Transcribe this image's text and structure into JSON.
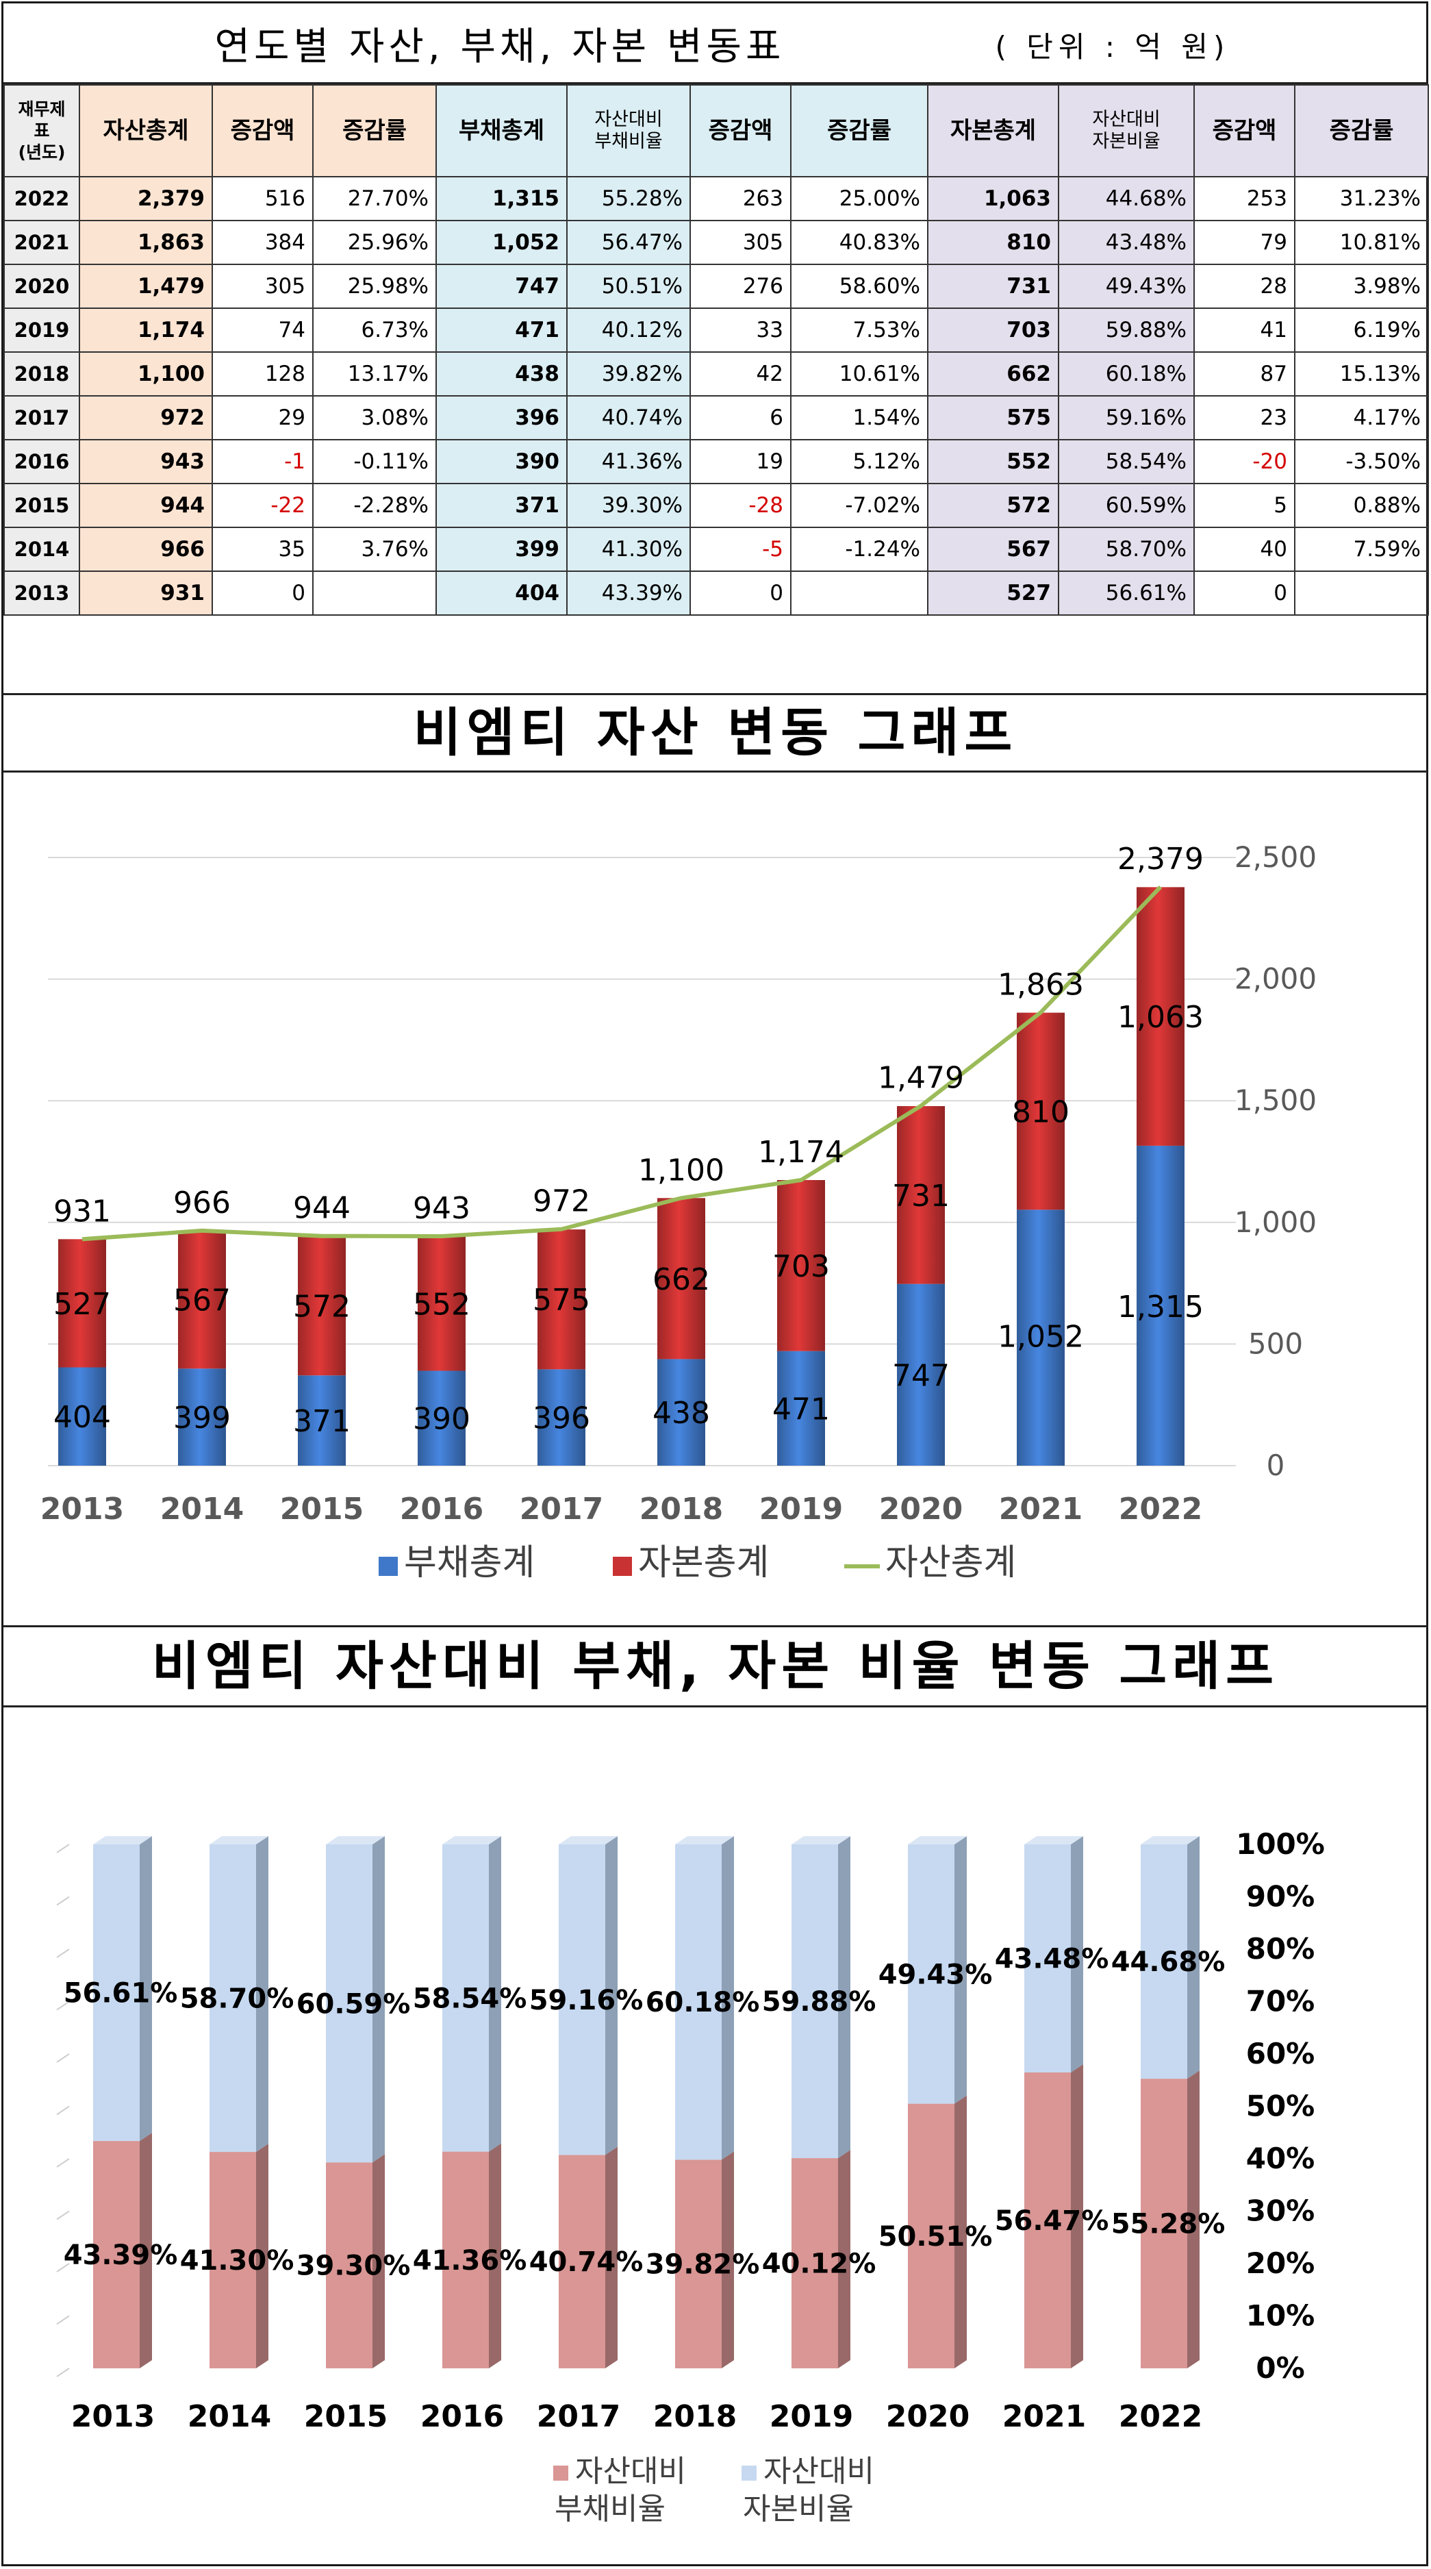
{
  "table": {
    "title": "연도별  자산,  부채,  자본  변동표",
    "unit": "( 단위 : 억 원)",
    "headers": [
      "재무제표\n(년도)",
      "자산총계",
      "증감액",
      "증감률",
      "부채총계",
      "자산대비\n부채비율",
      "증감액",
      "증감률",
      "자본총계",
      "자산대비\n자본비율",
      "증감액",
      "증감률"
    ],
    "rows": [
      [
        "2022",
        "2,379",
        "516",
        "27.70%",
        "1,315",
        "55.28%",
        "263",
        "25.00%",
        "1,063",
        "44.68%",
        "253",
        "31.23%"
      ],
      [
        "2021",
        "1,863",
        "384",
        "25.96%",
        "1,052",
        "56.47%",
        "305",
        "40.83%",
        "810",
        "43.48%",
        "79",
        "10.81%"
      ],
      [
        "2020",
        "1,479",
        "305",
        "25.98%",
        "747",
        "50.51%",
        "276",
        "58.60%",
        "731",
        "49.43%",
        "28",
        "3.98%"
      ],
      [
        "2019",
        "1,174",
        "74",
        "6.73%",
        "471",
        "40.12%",
        "33",
        "7.53%",
        "703",
        "59.88%",
        "41",
        "6.19%"
      ],
      [
        "2018",
        "1,100",
        "128",
        "13.17%",
        "438",
        "39.82%",
        "42",
        "10.61%",
        "662",
        "60.18%",
        "87",
        "15.13%"
      ],
      [
        "2017",
        "972",
        "29",
        "3.08%",
        "396",
        "40.74%",
        "6",
        "1.54%",
        "575",
        "59.16%",
        "23",
        "4.17%"
      ],
      [
        "2016",
        "943",
        "-1",
        "-0.11%",
        "390",
        "41.36%",
        "19",
        "5.12%",
        "552",
        "58.54%",
        "-20",
        "-3.50%"
      ],
      [
        "2015",
        "944",
        "-22",
        "-2.28%",
        "371",
        "39.30%",
        "-28",
        "-7.02%",
        "572",
        "60.59%",
        "5",
        "0.88%"
      ],
      [
        "2014",
        "966",
        "35",
        "3.76%",
        "399",
        "41.30%",
        "-5",
        "-1.24%",
        "567",
        "58.70%",
        "40",
        "7.59%"
      ],
      [
        "2013",
        "931",
        "0",
        "",
        "404",
        "43.39%",
        "0",
        "",
        "527",
        "56.61%",
        "0",
        ""
      ]
    ]
  },
  "chart_data": [
    {
      "type": "bar",
      "title": "비엠티 자산 변동 그래프",
      "stacked": true,
      "categories": [
        "2013",
        "2014",
        "2015",
        "2016",
        "2017",
        "2018",
        "2019",
        "2020",
        "2021",
        "2022"
      ],
      "series": [
        {
          "name": "부채총계",
          "type": "bar",
          "values": [
            404,
            399,
            371,
            390,
            396,
            438,
            471,
            747,
            1052,
            1315
          ],
          "labels": [
            "404",
            "399",
            "371",
            "390",
            "396",
            "438",
            "471",
            "747",
            "1,052",
            "1,315"
          ],
          "color": "#3f78c8"
        },
        {
          "name": "자본총계",
          "type": "bar",
          "values": [
            527,
            567,
            572,
            552,
            575,
            662,
            703,
            731,
            810,
            1063
          ],
          "labels": [
            "527",
            "567",
            "572",
            "552",
            "575",
            "662",
            "703",
            "731",
            "810",
            "1,063"
          ],
          "color": "#c93232"
        },
        {
          "name": "자산총계",
          "type": "line",
          "values": [
            931,
            966,
            944,
            943,
            972,
            1100,
            1174,
            1479,
            1863,
            2379
          ],
          "labels": [
            "931",
            "966",
            "944",
            "943",
            "972",
            "1,100",
            "1,174",
            "1,479",
            "1,863",
            "2,379"
          ],
          "color": "#9bbb59"
        }
      ],
      "ylim": [
        0,
        2500
      ],
      "yticks": [
        "0",
        "500",
        "1,000",
        "1,500",
        "2,000",
        "2,500"
      ],
      "axis_position": "right",
      "legend_position": "bottom",
      "grid": true
    },
    {
      "type": "bar",
      "title": "비엠티 자산대비 부채, 자본 비율 변동 그래프",
      "stacked": true,
      "percent": true,
      "categories": [
        "2013",
        "2014",
        "2015",
        "2016",
        "2017",
        "2018",
        "2019",
        "2020",
        "2021",
        "2022"
      ],
      "series": [
        {
          "name": "자산대비 부채비율",
          "values": [
            43.39,
            41.3,
            39.3,
            41.36,
            40.74,
            39.82,
            40.12,
            50.51,
            56.47,
            55.28
          ],
          "labels": [
            "43.39%",
            "41.30%",
            "39.30%",
            "41.36%",
            "40.74%",
            "39.82%",
            "40.12%",
            "50.51%",
            "56.47%",
            "55.28%"
          ],
          "color": "#d99694"
        },
        {
          "name": "자산대비 자본비율",
          "values": [
            56.61,
            58.7,
            60.59,
            58.54,
            59.16,
            60.18,
            59.88,
            49.43,
            43.48,
            44.68
          ],
          "labels": [
            "56.61%",
            "58.70%",
            "60.59%",
            "58.54%",
            "59.16%",
            "60.18%",
            "59.88%",
            "49.43%",
            "43.48%",
            "44.68%"
          ],
          "color": "#c6d9f1"
        }
      ],
      "ylim": [
        0,
        100
      ],
      "yticks": [
        "0%",
        "10%",
        "20%",
        "30%",
        "40%",
        "50%",
        "60%",
        "70%",
        "80%",
        "90%",
        "100%"
      ],
      "axis_position": "right",
      "legend_position": "bottom",
      "legend_labels": [
        [
          "자산대비",
          "부채비율"
        ],
        [
          "자산대비",
          "자본비율"
        ]
      ]
    }
  ]
}
